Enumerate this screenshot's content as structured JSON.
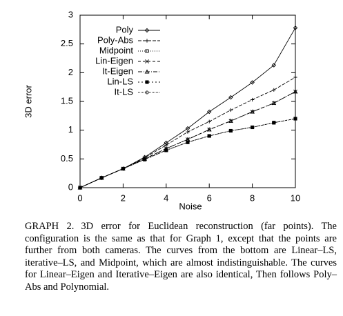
{
  "chart_data": {
    "type": "line",
    "x_label": "Noise",
    "y_label": "3D error",
    "x": [
      0,
      1,
      2,
      3,
      4,
      5,
      6,
      7,
      8,
      9,
      10
    ],
    "xlim": [
      0,
      10
    ],
    "xticks": [
      0,
      2,
      4,
      6,
      8,
      10
    ],
    "ylim": [
      0,
      3
    ],
    "yticks": [
      0,
      0.5,
      1,
      1.5,
      2,
      2.5,
      3
    ],
    "legend": "top-left",
    "series": [
      {
        "name": "Poly",
        "color": "#000000",
        "dash": "none",
        "marker": "diamond",
        "values": [
          0,
          0.17,
          0.33,
          0.53,
          0.78,
          1.03,
          1.32,
          1.57,
          1.83,
          2.13,
          2.78
        ]
      },
      {
        "name": "Poly-Abs",
        "color": "#000000",
        "dash": "5,2",
        "marker": "plus",
        "values": [
          0,
          0.17,
          0.33,
          0.52,
          0.74,
          0.97,
          1.15,
          1.35,
          1.53,
          1.7,
          1.92
        ]
      },
      {
        "name": "Midpoint",
        "color": "#000000",
        "dash": "1,2",
        "marker": "square",
        "values": [
          0,
          0.17,
          0.33,
          0.49,
          0.65,
          0.79,
          0.9,
          0.99,
          1.05,
          1.13,
          1.2
        ]
      },
      {
        "name": "Lin-Eigen",
        "color": "#000000",
        "dash": "4,3",
        "marker": "cross",
        "values": [
          0,
          0.17,
          0.33,
          0.5,
          0.68,
          0.84,
          1.01,
          1.16,
          1.32,
          1.47,
          1.67
        ]
      },
      {
        "name": "It-Eigen",
        "color": "#000000",
        "dash": "6,2,1,2",
        "marker": "triangle",
        "values": [
          0,
          0.17,
          0.33,
          0.5,
          0.68,
          0.84,
          1.01,
          1.16,
          1.32,
          1.47,
          1.67
        ]
      },
      {
        "name": "Lin-LS",
        "color": "#000000",
        "dash": "2,3",
        "marker": "filled-square",
        "values": [
          0,
          0.17,
          0.33,
          0.49,
          0.65,
          0.79,
          0.9,
          0.99,
          1.05,
          1.13,
          1.2
        ]
      },
      {
        "name": "It-LS",
        "color": "#000000",
        "dash": "1,1",
        "marker": "circle",
        "values": [
          0,
          0.17,
          0.33,
          0.49,
          0.65,
          0.79,
          0.9,
          0.99,
          1.05,
          1.13,
          1.2
        ]
      }
    ]
  },
  "caption": {
    "label": "GRAPH 2.",
    "text": "3D error for Euclidean reconstruction (far points). The configuration is the same as that for Graph 1, except that the points are further from both cameras. The curves from the bottom are Linear–LS, iterative–LS, and Midpoint, which are almost indistinguishable. The curves for Linear–Eigen and Iterative–Eigen are also identical, Then follows Poly–Abs and Polynomial."
  }
}
